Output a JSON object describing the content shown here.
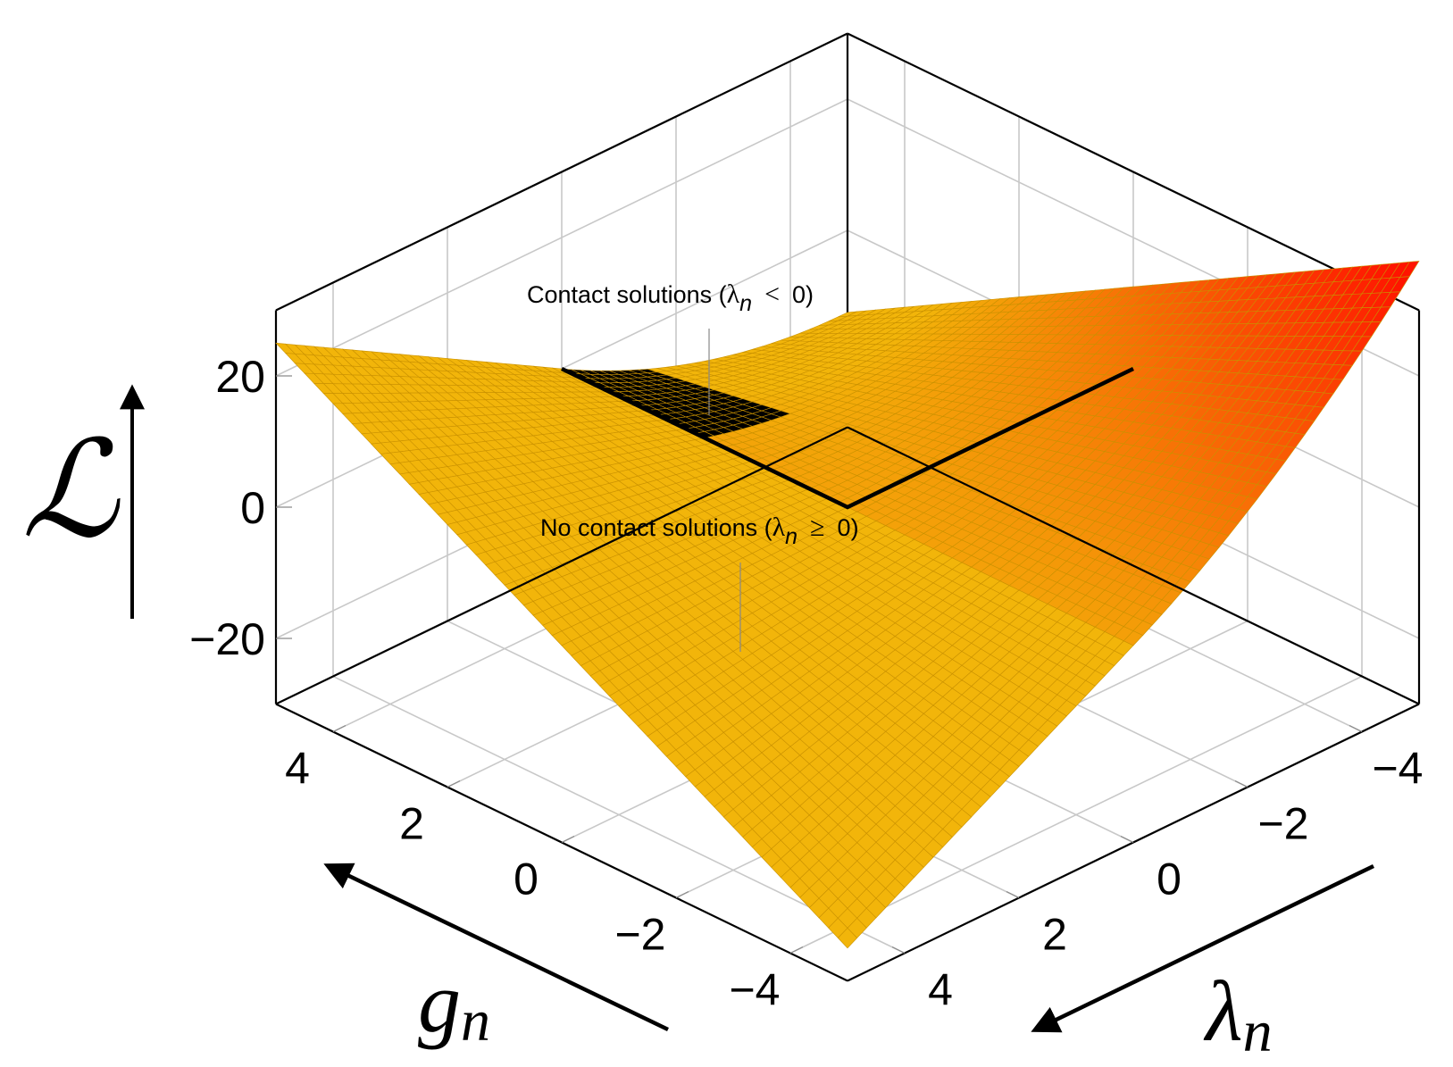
{
  "chart_data": {
    "type": "surface3d",
    "title": "",
    "xlabel": {
      "symbol": "g",
      "subscript": "n"
    },
    "ylabel": {
      "symbol": "λ",
      "subscript": "n"
    },
    "zlabel": "ℒ",
    "x_ticks": [
      {
        "value": 4,
        "label": "4"
      },
      {
        "value": 2,
        "label": "2"
      },
      {
        "value": 0,
        "label": "0"
      },
      {
        "value": -2,
        "label": "−2"
      },
      {
        "value": -4,
        "label": "−4"
      }
    ],
    "y_ticks": [
      {
        "value": -4,
        "label": "−4"
      },
      {
        "value": -2,
        "label": "−2"
      },
      {
        "value": 0,
        "label": "0"
      },
      {
        "value": 2,
        "label": "2"
      },
      {
        "value": 4,
        "label": "4"
      }
    ],
    "z_ticks": [
      {
        "value": 20,
        "label": "20"
      },
      {
        "value": 0,
        "label": "0"
      },
      {
        "value": -20,
        "label": "−20"
      }
    ],
    "xlim": [
      -5,
      5
    ],
    "ylim": [
      -5,
      5
    ],
    "zlim": [
      -30,
      30
    ],
    "grid": true,
    "surface": {
      "function": "L = λn·gn + ½·min(λn,0)²",
      "x_range": [
        -5,
        5
      ],
      "y_range": [
        -5,
        5
      ],
      "samples": 61,
      "colors": {
        "low": "#f2b50a",
        "high": "#ff1400",
        "ridge": "#d2d200",
        "mesh": "#c99100"
      }
    },
    "annotations": [
      {
        "text": "Contact solutions (",
        "symbol": "λ",
        "subscript": "n",
        "relation": "<",
        "value": "0)"
      },
      {
        "text": "No contact solutions (",
        "symbol": "λ",
        "subscript": "n",
        "relation": "≥",
        "value": "0)"
      }
    ]
  }
}
